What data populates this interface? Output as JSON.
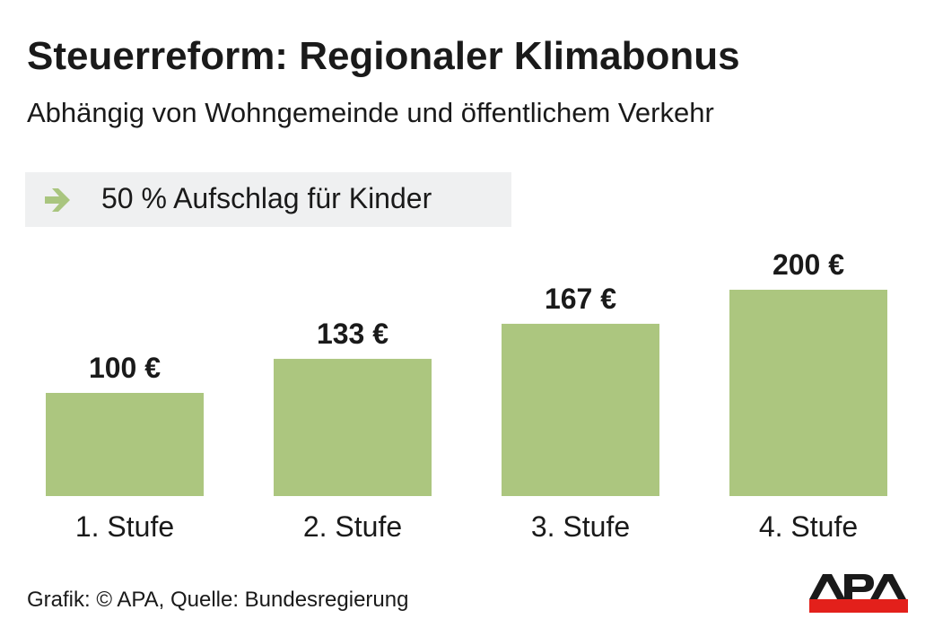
{
  "title": "Steuerreform: Regionaler Klimabonus",
  "subtitle": "Abhängig von Wohngemeinde und öffentlichem Verkehr",
  "note": {
    "icon": "arrow-right-icon",
    "text": "50 % Aufschlag für Kinder",
    "icon_color": "#a9c57f"
  },
  "chart_data": {
    "type": "bar",
    "categories": [
      "1. Stufe",
      "2. Stufe",
      "3. Stufe",
      "4. Stufe"
    ],
    "values": [
      100,
      133,
      167,
      200
    ],
    "data_labels": [
      "100 €",
      "133 €",
      "167 €",
      "200 €"
    ],
    "ylim": [
      0,
      200
    ],
    "grid": false,
    "bar_color": "#acc67f"
  },
  "footer": "Grafik: © APA, Quelle: Bundesregierung",
  "logo": {
    "text": "APA",
    "color_text": "#1a1a1a",
    "color_band": "#e3201b"
  }
}
